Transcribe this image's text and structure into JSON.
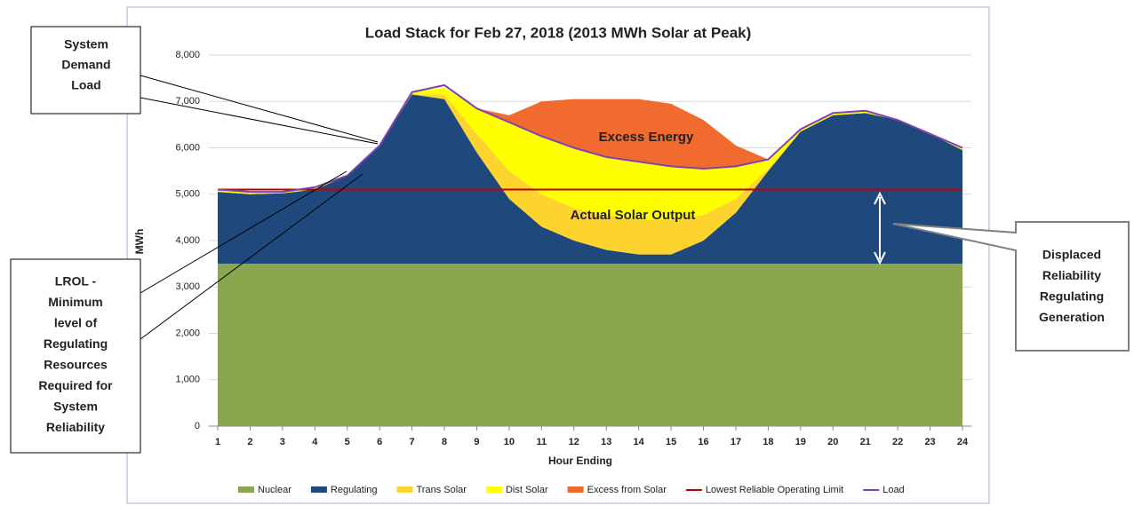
{
  "chart_data": {
    "type": "stacked_area",
    "title": "Load Stack for Feb 27, 2018 (2013 MWh Solar at Peak)",
    "x_label": "Hour Ending",
    "y_label": "MWh",
    "x": [
      1,
      2,
      3,
      4,
      5,
      6,
      7,
      8,
      9,
      10,
      11,
      12,
      13,
      14,
      15,
      16,
      17,
      18,
      19,
      20,
      21,
      22,
      23,
      24
    ],
    "xlim": [
      1,
      24
    ],
    "ylim": [
      0,
      8000
    ],
    "yticks": [
      0,
      {
        "value": 1000,
        "label": "1,000"
      },
      {
        "value": 2000,
        "label": "2,000"
      },
      {
        "value": 3000,
        "label": "3,000"
      },
      {
        "value": 4000,
        "label": "4,000"
      },
      {
        "value": 5000,
        "label": "5,000"
      },
      {
        "value": 6000,
        "label": "6,000"
      },
      {
        "value": 7000,
        "label": "7,000"
      },
      {
        "value": 8000,
        "label": "8,000"
      }
    ],
    "grid": true,
    "series": [
      {
        "name": "Nuclear",
        "color": "#8aa64f",
        "type": "area",
        "values": [
          3500,
          3500,
          3500,
          3500,
          3500,
          3500,
          3500,
          3500,
          3500,
          3500,
          3500,
          3500,
          3500,
          3500,
          3500,
          3500,
          3500,
          3500,
          3500,
          3500,
          3500,
          3500,
          3500,
          3500
        ]
      },
      {
        "name": "Regulating",
        "color": "#1f497d",
        "type": "area",
        "values": [
          1550,
          1500,
          1520,
          1600,
          1900,
          2550,
          3650,
          3550,
          2400,
          1400,
          800,
          500,
          300,
          200,
          200,
          500,
          1100,
          2000,
          2850,
          3200,
          3250,
          3100,
          2800,
          2450
        ]
      },
      {
        "name": "Trans Solar",
        "color": "#fdd32e",
        "type": "area",
        "values": [
          0,
          0,
          0,
          0,
          0,
          0,
          0,
          100,
          400,
          600,
          700,
          700,
          750,
          750,
          750,
          550,
          300,
          50,
          0,
          0,
          0,
          0,
          0,
          0
        ]
      },
      {
        "name": "Dist Solar",
        "color": "#ffff00",
        "type": "area",
        "values": [
          50,
          50,
          30,
          50,
          0,
          0,
          50,
          150,
          550,
          1050,
          1250,
          1300,
          1250,
          1250,
          1150,
          1000,
          700,
          200,
          50,
          50,
          50,
          0,
          0,
          50
        ]
      },
      {
        "name": "Excess from Solar",
        "color": "#f26b2e",
        "type": "area",
        "values": [
          0,
          0,
          0,
          0,
          0,
          0,
          0,
          0,
          0,
          150,
          750,
          1050,
          1250,
          1350,
          1350,
          1050,
          450,
          0,
          0,
          0,
          0,
          0,
          0,
          0
        ]
      },
      {
        "name": "Lowest Reliable Operating Limit",
        "color": "#c00000",
        "type": "line",
        "values": [
          5100,
          5100,
          5100,
          5100,
          5100,
          5100,
          5100,
          5100,
          5100,
          5100,
          5100,
          5100,
          5100,
          5100,
          5100,
          5100,
          5100,
          5100,
          5100,
          5100,
          5100,
          5100,
          5100,
          5100
        ]
      },
      {
        "name": "Load",
        "color": "#8040b0",
        "type": "line",
        "values": [
          5100,
          5050,
          5050,
          5150,
          5400,
          6050,
          7200,
          7350,
          6850,
          6550,
          6250,
          6000,
          5800,
          5700,
          5600,
          5550,
          5600,
          5750,
          6400,
          6750,
          6800,
          6600,
          6300,
          6000
        ]
      }
    ],
    "annotations": {
      "excess": "Excess Energy",
      "solar": "Actual Solar Output",
      "demand": [
        "System",
        "Demand",
        "Load"
      ],
      "lrol": [
        "LROL -",
        "Minimum",
        "level of",
        "Regulating",
        "Resources",
        "Required for",
        "System",
        "Reliability"
      ],
      "displaced": [
        "Displaced",
        "Reliability",
        "Regulating",
        "Generation"
      ]
    }
  }
}
